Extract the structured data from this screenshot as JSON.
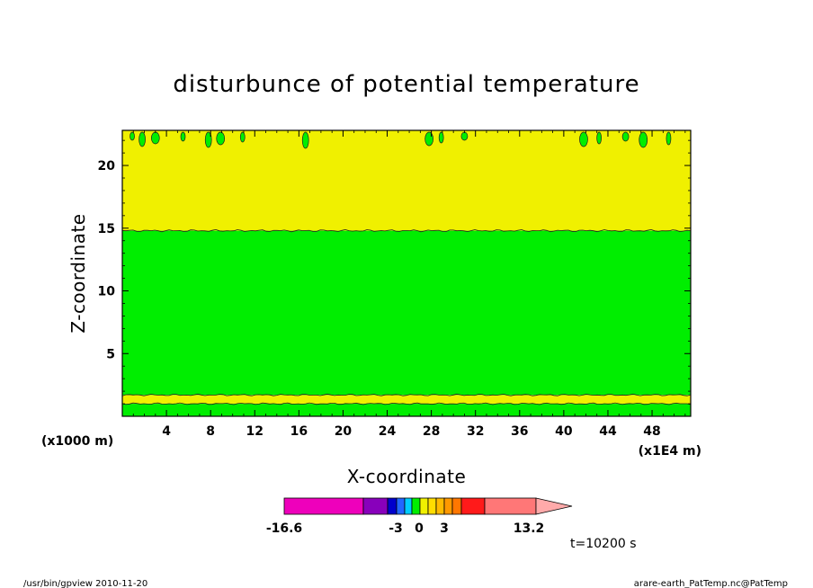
{
  "chart_data": {
    "type": "heatmap",
    "title": "disturbunce of potential temperature",
    "xlabel": "X-coordinate",
    "ylabel": "Z-coordinate",
    "x_unit": "(x1E4 m)",
    "y_unit": "(x1000 m)",
    "xlim": [
      0,
      51.5
    ],
    "ylim": [
      0,
      22.8
    ],
    "x_ticks": [
      4,
      8,
      12,
      16,
      20,
      24,
      28,
      32,
      36,
      40,
      44,
      48
    ],
    "y_ticks": [
      5,
      10,
      15,
      20
    ],
    "regions": [
      {
        "z_from": 0.0,
        "z_to": 1.0,
        "color": "#00ee00"
      },
      {
        "z_from": 1.0,
        "z_to": 1.7,
        "color": "#f0f000"
      },
      {
        "z_from": 1.7,
        "z_to": 14.8,
        "color": "#00ee00"
      },
      {
        "z_from": 14.8,
        "z_to": 22.8,
        "color": "#f0f000"
      }
    ],
    "top_blobs_x": [
      0.9,
      1.8,
      3.0,
      5.5,
      7.8,
      8.9,
      10.9,
      16.6,
      27.8,
      28.9,
      31.0,
      41.8,
      43.2,
      45.6,
      47.2,
      49.5
    ],
    "colorbar": {
      "min_label": "-16.6",
      "max_label": "13.2",
      "mid_labels": [
        "-3",
        "0",
        "3"
      ],
      "segments": [
        {
          "color": "#ee00bb",
          "w": 88
        },
        {
          "color": "#8800bb",
          "w": 27
        },
        {
          "color": "#0000cc",
          "w": 10
        },
        {
          "color": "#2266ff",
          "w": 9
        },
        {
          "color": "#00ccff",
          "w": 8
        },
        {
          "color": "#00ee00",
          "w": 9
        },
        {
          "color": "#f0f000",
          "w": 9
        },
        {
          "color": "#ffdd00",
          "w": 9
        },
        {
          "color": "#ffbb00",
          "w": 9
        },
        {
          "color": "#ff9900",
          "w": 9
        },
        {
          "color": "#ff7700",
          "w": 10
        },
        {
          "color": "#ff1a1a",
          "w": 26
        },
        {
          "color": "#ff7777",
          "w": 57
        }
      ],
      "extend_color": "#ffaaaa"
    }
  },
  "time_label": "t=10200 s",
  "footer_left": "/usr/bin/gpview   2010-11-20",
  "footer_right": "arare-earth_PatTemp.nc@PatTemp"
}
